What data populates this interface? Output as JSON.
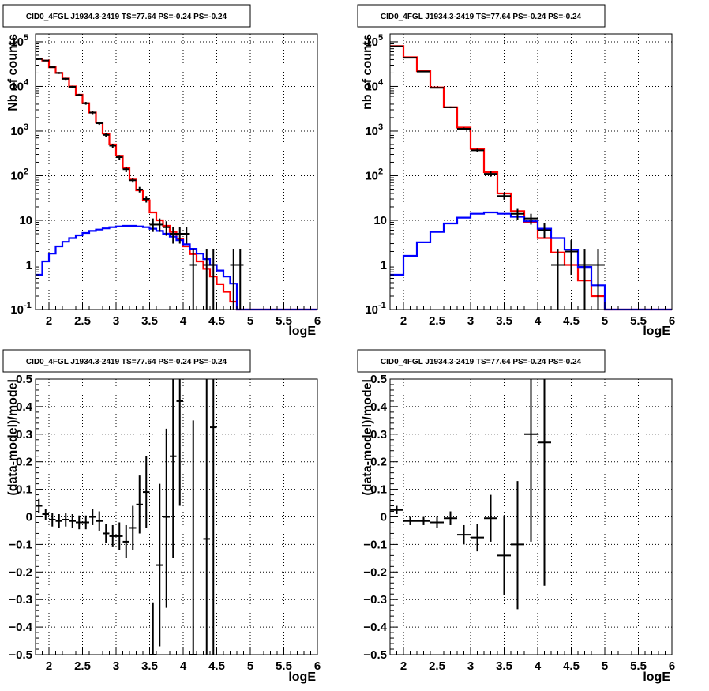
{
  "chart_data": [
    {
      "type": "histogram",
      "title": "CID0_4FGL J1934.3-2419 TS=77.64 PS=-0.24 PS=-0.24",
      "xlabel": "logE",
      "ylabel": "Nb of counts",
      "xlim": [
        1.8,
        6.0
      ],
      "ylim": [
        0.1,
        150000
      ],
      "yscale": "log",
      "xticks": [
        "2",
        "2.5",
        "3",
        "3.5",
        "4",
        "4.5",
        "5",
        "5.5",
        "6"
      ],
      "yticks": [
        "10^-1",
        "1",
        "10",
        "10^2",
        "10^3",
        "10^4",
        "10^5"
      ],
      "grid": true,
      "bin_edges": [
        1.8,
        1.9,
        2.0,
        2.1,
        2.2,
        2.3,
        2.4,
        2.5,
        2.6,
        2.7,
        2.8,
        2.9,
        3.0,
        3.1,
        3.2,
        3.3,
        3.4,
        3.5,
        3.6,
        3.7,
        3.8,
        3.9,
        4.0,
        4.1,
        4.2,
        4.3,
        4.4,
        4.5,
        4.6,
        4.7,
        4.8,
        4.9,
        5.0,
        5.1,
        5.2,
        5.3,
        5.4,
        5.5,
        5.6,
        5.7,
        5.8,
        5.9,
        6.0
      ],
      "series": [
        {
          "color": "#ff0000",
          "values": [
            42000,
            38000,
            27000,
            20000,
            15000,
            10000,
            6500,
            4200,
            2600,
            1550,
            880,
            500,
            280,
            150,
            82,
            47,
            28,
            15,
            10,
            7.5,
            5.5,
            3.9,
            2.6,
            1.75,
            1.2,
            0.82,
            0.55,
            0.37,
            0.25,
            0.15,
            0.1,
            0.1,
            0.1,
            0.1,
            0.1,
            0.1,
            0.1,
            0.1,
            0.1,
            0.1,
            0.1,
            0.1
          ]
        },
        {
          "color": "#0000ff",
          "values": [
            0.6,
            1.2,
            1.8,
            2.6,
            3.3,
            4.0,
            4.6,
            5.2,
            5.8,
            6.2,
            6.6,
            7.0,
            7.3,
            7.5,
            7.5,
            7.3,
            7.0,
            6.5,
            5.8,
            5.0,
            4.3,
            3.6,
            2.9,
            2.3,
            1.8,
            1.35,
            1.0,
            0.75,
            0.55,
            0.38,
            0.1,
            0.1,
            0.1,
            0.1,
            0.1,
            0.1,
            0.1,
            0.1,
            0.1,
            0.1,
            0.1,
            0.1
          ]
        }
      ],
      "data_points": [
        {
          "x": 1.85,
          "y": 41000,
          "ylo": 40000,
          "yhi": 42000
        },
        {
          "x": 1.95,
          "y": 38000,
          "ylo": 37000,
          "yhi": 39000
        },
        {
          "x": 2.05,
          "y": 27000,
          "ylo": 26000,
          "yhi": 28000
        },
        {
          "x": 2.15,
          "y": 20000,
          "ylo": 19000,
          "yhi": 21000
        },
        {
          "x": 2.25,
          "y": 14800,
          "ylo": 14000,
          "yhi": 15600
        },
        {
          "x": 2.35,
          "y": 9800,
          "ylo": 9300,
          "yhi": 10300
        },
        {
          "x": 2.45,
          "y": 6400,
          "ylo": 6000,
          "yhi": 6800
        },
        {
          "x": 2.55,
          "y": 4200,
          "ylo": 3900,
          "yhi": 4500
        },
        {
          "x": 2.65,
          "y": 2600,
          "ylo": 2400,
          "yhi": 2800
        },
        {
          "x": 2.75,
          "y": 1500,
          "ylo": 1380,
          "yhi": 1620
        },
        {
          "x": 2.85,
          "y": 820,
          "ylo": 740,
          "yhi": 900
        },
        {
          "x": 2.95,
          "y": 470,
          "ylo": 420,
          "yhi": 520
        },
        {
          "x": 3.05,
          "y": 260,
          "ylo": 230,
          "yhi": 290
        },
        {
          "x": 3.15,
          "y": 140,
          "ylo": 120,
          "yhi": 160
        },
        {
          "x": 3.25,
          "y": 79,
          "ylo": 70,
          "yhi": 88
        },
        {
          "x": 3.35,
          "y": 49,
          "ylo": 42,
          "yhi": 56
        },
        {
          "x": 3.45,
          "y": 30,
          "ylo": 25,
          "yhi": 35
        },
        {
          "x": 3.55,
          "y": 8,
          "ylo": 5.5,
          "yhi": 11
        },
        {
          "x": 3.65,
          "y": 8,
          "ylo": 5.5,
          "yhi": 11
        },
        {
          "x": 3.75,
          "y": 7,
          "ylo": 4.5,
          "yhi": 9.5
        },
        {
          "x": 3.85,
          "y": 5,
          "ylo": 3,
          "yhi": 7
        },
        {
          "x": 3.95,
          "y": 5,
          "ylo": 3,
          "yhi": 7
        },
        {
          "x": 4.05,
          "y": 5,
          "ylo": 3,
          "yhi": 7
        },
        {
          "x": 4.15,
          "y": 1,
          "ylo": 0.1,
          "yhi": 2.3
        },
        {
          "x": 4.35,
          "y": 1,
          "ylo": 0.1,
          "yhi": 2.3
        },
        {
          "x": 4.45,
          "y": 1,
          "ylo": 0.1,
          "yhi": 2.3
        },
        {
          "x": 4.75,
          "y": 1,
          "ylo": 0.1,
          "yhi": 2.3
        },
        {
          "x": 4.85,
          "y": 1,
          "ylo": 0.1,
          "yhi": 2.3
        }
      ]
    },
    {
      "type": "histogram",
      "title": "CID0_4FGL J1934.3-2419 TS=77.64 PS=-0.24 PS=-0.24",
      "xlabel": "logE",
      "ylabel": "nb of counts",
      "xlim": [
        1.8,
        6.0
      ],
      "ylim": [
        0.1,
        150000
      ],
      "yscale": "log",
      "xticks": [
        "2",
        "2.5",
        "3",
        "3.5",
        "4",
        "4.5",
        "5",
        "5.5",
        "6"
      ],
      "yticks": [
        "10^-1",
        "1",
        "10",
        "10^2",
        "10^3",
        "10^4",
        "10^5"
      ],
      "grid": true,
      "bin_edges": [
        1.8,
        2.0,
        2.2,
        2.4,
        2.6,
        2.8,
        3.0,
        3.2,
        3.4,
        3.6,
        3.8,
        4.0,
        4.2,
        4.4,
        4.6,
        4.8,
        5.0,
        5.2,
        5.4,
        5.6,
        5.8,
        6.0
      ],
      "series": [
        {
          "color": "#ff0000",
          "values": [
            80000,
            45000,
            22000,
            9500,
            3400,
            1200,
            400,
            120,
            40,
            16,
            9,
            4,
            1.9,
            1.0,
            0.45,
            0.2,
            0.1,
            0.1,
            0.1,
            0.1,
            0.1
          ]
        },
        {
          "color": "#0000ff",
          "values": [
            0.6,
            1.6,
            3.2,
            5.5,
            8.5,
            11.5,
            14,
            15,
            14,
            12,
            9.5,
            6.5,
            4,
            2.2,
            0.9,
            0.35,
            0.1,
            0.1,
            0.1,
            0.1,
            0.1
          ]
        }
      ],
      "data_points": [
        {
          "x": 1.9,
          "y": 79000,
          "ylo": 78000,
          "yhi": 80000
        },
        {
          "x": 2.1,
          "y": 44000,
          "ylo": 43000,
          "yhi": 45000
        },
        {
          "x": 2.3,
          "y": 21500,
          "ylo": 21000,
          "yhi": 22000
        },
        {
          "x": 2.5,
          "y": 9300,
          "ylo": 9000,
          "yhi": 9600
        },
        {
          "x": 2.7,
          "y": 3400,
          "ylo": 3250,
          "yhi": 3550
        },
        {
          "x": 2.9,
          "y": 1130,
          "ylo": 1060,
          "yhi": 1200
        },
        {
          "x": 3.1,
          "y": 370,
          "ylo": 340,
          "yhi": 400
        },
        {
          "x": 3.3,
          "y": 110,
          "ylo": 95,
          "yhi": 125
        },
        {
          "x": 3.5,
          "y": 35,
          "ylo": 29,
          "yhi": 41
        },
        {
          "x": 3.7,
          "y": 14,
          "ylo": 10,
          "yhi": 18
        },
        {
          "x": 3.9,
          "y": 11,
          "ylo": 8,
          "yhi": 14
        },
        {
          "x": 4.1,
          "y": 6,
          "ylo": 4,
          "yhi": 8.5
        },
        {
          "x": 4.3,
          "y": 1,
          "ylo": 0.1,
          "yhi": 2.3
        },
        {
          "x": 4.5,
          "y": 2,
          "ylo": 0.6,
          "yhi": 3.6
        },
        {
          "x": 4.7,
          "y": 1,
          "ylo": 0.1,
          "yhi": 2.3
        },
        {
          "x": 4.9,
          "y": 1,
          "ylo": 0.1,
          "yhi": 2.3
        }
      ]
    },
    {
      "type": "scatter",
      "title": "CID0_4FGL J1934.3-2419 TS=77.64 PS=-0.24 PS=-0.24",
      "xlabel": "logE",
      "ylabel": "(data-model)/model",
      "xlim": [
        1.8,
        6.0
      ],
      "ylim": [
        -0.5,
        0.5
      ],
      "xticks": [
        "2",
        "2.5",
        "3",
        "3.5",
        "4",
        "4.5",
        "5",
        "5.5",
        "6"
      ],
      "yticks": [
        "-0.5",
        "-0.4",
        "-0.3",
        "-0.2",
        "-0.1",
        "0",
        "0.1",
        "0.2",
        "0.3",
        "0.4",
        "0.5"
      ],
      "grid": true,
      "bin_width": 0.1,
      "data_points": [
        {
          "x": 1.85,
          "y": 0.04,
          "ylo": 0.015,
          "yhi": 0.065
        },
        {
          "x": 1.95,
          "y": 0.01,
          "ylo": -0.01,
          "yhi": 0.03
        },
        {
          "x": 2.05,
          "y": -0.01,
          "ylo": -0.035,
          "yhi": 0.015
        },
        {
          "x": 2.15,
          "y": -0.015,
          "ylo": -0.04,
          "yhi": 0.01
        },
        {
          "x": 2.25,
          "y": -0.01,
          "ylo": -0.035,
          "yhi": 0.015
        },
        {
          "x": 2.35,
          "y": -0.015,
          "ylo": -0.04,
          "yhi": 0.01
        },
        {
          "x": 2.45,
          "y": -0.02,
          "ylo": -0.045,
          "yhi": 0.005
        },
        {
          "x": 2.55,
          "y": -0.02,
          "ylo": -0.045,
          "yhi": 0.005
        },
        {
          "x": 2.65,
          "y": 0.0,
          "ylo": -0.03,
          "yhi": 0.03
        },
        {
          "x": 2.75,
          "y": -0.015,
          "ylo": -0.05,
          "yhi": 0.02
        },
        {
          "x": 2.85,
          "y": -0.06,
          "ylo": -0.095,
          "yhi": -0.025
        },
        {
          "x": 2.95,
          "y": -0.07,
          "ylo": -0.11,
          "yhi": -0.03
        },
        {
          "x": 3.05,
          "y": -0.07,
          "ylo": -0.12,
          "yhi": -0.02
        },
        {
          "x": 3.15,
          "y": -0.09,
          "ylo": -0.15,
          "yhi": -0.03
        },
        {
          "x": 3.25,
          "y": -0.04,
          "ylo": -0.12,
          "yhi": 0.04
        },
        {
          "x": 3.35,
          "y": 0.045,
          "ylo": -0.06,
          "yhi": 0.15
        },
        {
          "x": 3.45,
          "y": 0.09,
          "ylo": -0.04,
          "yhi": 0.22
        },
        {
          "x": 3.55,
          "y": -0.5,
          "ylo": -0.5,
          "yhi": -0.31
        },
        {
          "x": 3.65,
          "y": -0.175,
          "ylo": -0.47,
          "yhi": 0.12
        },
        {
          "x": 3.75,
          "y": 0.0,
          "ylo": -0.33,
          "yhi": 0.32
        },
        {
          "x": 3.85,
          "y": 0.22,
          "ylo": -0.15,
          "yhi": 0.5
        },
        {
          "x": 3.95,
          "y": 0.42,
          "ylo": 0.04,
          "yhi": 0.5
        },
        {
          "x": 4.15,
          "y": -0.5,
          "ylo": -0.5,
          "yhi": 0.35
        },
        {
          "x": 4.35,
          "y": -0.08,
          "ylo": -0.5,
          "yhi": 0.5
        },
        {
          "x": 4.45,
          "y": 0.325,
          "ylo": -0.5,
          "yhi": 0.5
        }
      ]
    },
    {
      "type": "scatter",
      "title": "CID0_4FGL J1934.3-2419 TS=77.64 PS=-0.24 PS=-0.24",
      "xlabel": "logE",
      "ylabel": "(data-model)/model",
      "xlim": [
        1.8,
        6.0
      ],
      "ylim": [
        -0.5,
        0.5
      ],
      "xticks": [
        "2",
        "2.5",
        "3",
        "3.5",
        "4",
        "4.5",
        "5",
        "5.5",
        "6"
      ],
      "yticks": [
        "-0.5",
        "-0.4",
        "-0.3",
        "-0.2",
        "-0.1",
        "0",
        "0.1",
        "0.2",
        "0.3",
        "0.4",
        "0.5"
      ],
      "grid": true,
      "bin_width": 0.2,
      "data_points": [
        {
          "x": 1.9,
          "y": 0.025,
          "ylo": 0.01,
          "yhi": 0.04
        },
        {
          "x": 2.1,
          "y": -0.015,
          "ylo": -0.03,
          "yhi": 0.0
        },
        {
          "x": 2.3,
          "y": -0.015,
          "ylo": -0.03,
          "yhi": 0.0
        },
        {
          "x": 2.5,
          "y": -0.02,
          "ylo": -0.04,
          "yhi": 0.0
        },
        {
          "x": 2.7,
          "y": -0.005,
          "ylo": -0.03,
          "yhi": 0.02
        },
        {
          "x": 2.9,
          "y": -0.065,
          "ylo": -0.1,
          "yhi": -0.03
        },
        {
          "x": 3.1,
          "y": -0.075,
          "ylo": -0.125,
          "yhi": -0.025
        },
        {
          "x": 3.3,
          "y": -0.005,
          "ylo": -0.09,
          "yhi": 0.08
        },
        {
          "x": 3.5,
          "y": -0.14,
          "ylo": -0.285,
          "yhi": 0.005
        },
        {
          "x": 3.7,
          "y": -0.1,
          "ylo": -0.335,
          "yhi": 0.13
        },
        {
          "x": 3.9,
          "y": 0.3,
          "ylo": -0.09,
          "yhi": 0.5
        },
        {
          "x": 4.1,
          "y": 0.27,
          "ylo": -0.25,
          "yhi": 0.5
        }
      ]
    }
  ]
}
